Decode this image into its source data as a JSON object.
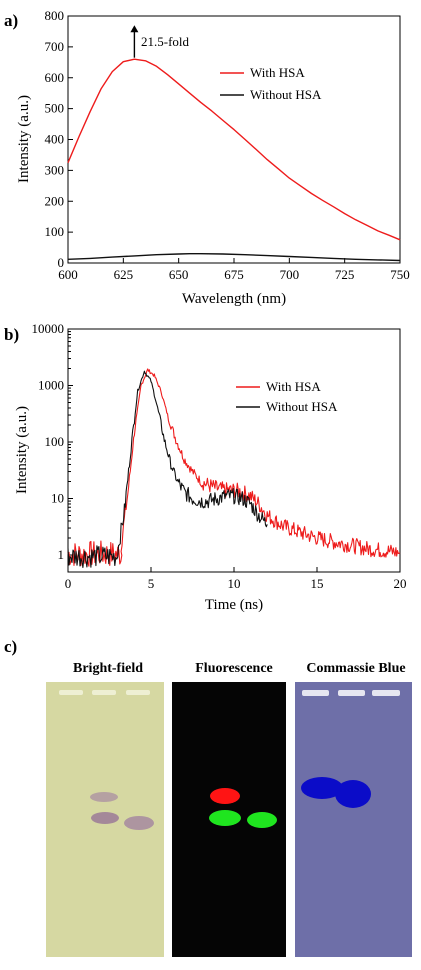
{
  "panels": [
    {
      "letter": "a)"
    },
    {
      "letter": "b)"
    },
    {
      "letter": "c)"
    }
  ],
  "chart_data": [
    {
      "type": "line",
      "xlabel": "Wavelength (nm)",
      "ylabel": "Intensity (a.u.)",
      "xlim": [
        600,
        750
      ],
      "ylim": [
        0,
        800
      ],
      "xticks": [
        "600",
        "625",
        "650",
        "675",
        "700",
        "725",
        "750"
      ],
      "yticks": [
        "0",
        "100",
        "200",
        "300",
        "400",
        "500",
        "600",
        "700",
        "800"
      ],
      "legend_position": "top-right",
      "annotation": "21.5-fold",
      "annotation_x": 630,
      "annotation_y_range": [
        665,
        770
      ],
      "series": [
        {
          "name": "With HSA",
          "color": "#ee1c1c",
          "x": [
            600,
            605,
            610,
            615,
            620,
            625,
            630,
            635,
            640,
            645,
            650,
            655,
            660,
            665,
            670,
            675,
            680,
            685,
            690,
            695,
            700,
            705,
            710,
            715,
            720,
            725,
            730,
            735,
            740,
            745,
            750
          ],
          "y": [
            325,
            410,
            490,
            565,
            620,
            652,
            660,
            655,
            637,
            610,
            580,
            550,
            520,
            492,
            462,
            432,
            400,
            368,
            335,
            305,
            275,
            250,
            225,
            203,
            182,
            160,
            140,
            122,
            104,
            90,
            75
          ]
        },
        {
          "name": "Without HSA",
          "color": "#111111",
          "x": [
            600,
            610,
            620,
            630,
            640,
            650,
            655,
            660,
            670,
            680,
            690,
            700,
            710,
            720,
            730,
            740,
            750
          ],
          "y": [
            12,
            15,
            19,
            23,
            27,
            29,
            30,
            30,
            29,
            27,
            24,
            21,
            18,
            15,
            12,
            10,
            8
          ]
        }
      ]
    },
    {
      "type": "line",
      "xlabel": "Time (ns)",
      "ylabel": "Intensity (a.u.)",
      "xlim": [
        0,
        20
      ],
      "ylim": [
        0.5,
        10000
      ],
      "yscale": "log",
      "xticks": [
        "0",
        "5",
        "10",
        "15",
        "20"
      ],
      "yticks": [
        "1",
        "10",
        "100",
        "1000",
        "10000"
      ],
      "legend_position": "top-right",
      "series": [
        {
          "name": "With HSA",
          "color": "#ee1c1c",
          "x": [
            3.2,
            3.6,
            4.0,
            4.4,
            4.8,
            5.2,
            5.6,
            6.0,
            6.5,
            7.0,
            7.5,
            8.0,
            8.5,
            9.0,
            9.5,
            10.0,
            10.5,
            11.0,
            11.5,
            12.0,
            12.5,
            13.0,
            14.0,
            15.0,
            16.0,
            17.0,
            18.0,
            19.0,
            20.0
          ],
          "y": [
            1.5,
            12,
            150,
            1000,
            1900,
            1500,
            800,
            300,
            110,
            50,
            30,
            20,
            17,
            15,
            14,
            14,
            13,
            11,
            8,
            5,
            4,
            3.2,
            2.5,
            2,
            1.7,
            1.5,
            1.3,
            1.2,
            1.1
          ]
        },
        {
          "name": "Without HSA",
          "color": "#111111",
          "x": [
            3.0,
            3.4,
            3.8,
            4.2,
            4.6,
            5.0,
            5.4,
            5.8,
            6.2,
            6.6,
            7.0,
            7.5,
            8.0,
            8.5,
            9.0,
            9.5,
            10.0,
            10.5,
            11.0,
            11.5,
            12.0
          ],
          "y": [
            1.2,
            6,
            80,
            800,
            1800,
            1200,
            400,
            110,
            40,
            20,
            13,
            10,
            9,
            9,
            10,
            11,
            11,
            10,
            8,
            5,
            3.5
          ]
        }
      ],
      "noise_base": [
        {
          "series": "With HSA",
          "x0": 0,
          "x1": 3.3,
          "min": 0.6,
          "max": 1.8
        },
        {
          "series": "Without HSA",
          "x0": 0,
          "x1": 3.0,
          "min": 0.6,
          "max": 1.5
        }
      ]
    }
  ],
  "gels": [
    {
      "title": "Bright-field",
      "background": "#d6d8a2"
    },
    {
      "title": "Fluorescence",
      "background": "#050505"
    },
    {
      "title": "Commassie Blue",
      "background": "#6e6fa8"
    }
  ]
}
